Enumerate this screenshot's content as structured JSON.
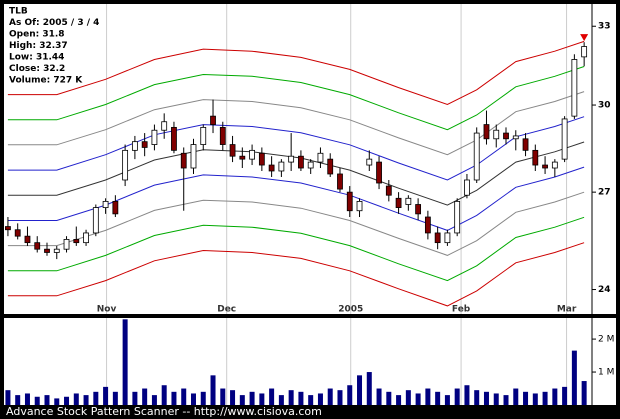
{
  "chart_data": {
    "type": "candlestick",
    "info": [
      "TLB",
      "As Of: 2005 / 3 / 4",
      "Open: 31.8",
      "High: 32.37",
      "Low: 31.44",
      "Close: 32.2",
      "Volume: 727 K"
    ],
    "footer": "Advance Stock Pattern Scanner -- http://www.cisiova.com",
    "ohlc": [
      [
        25.9,
        26.2,
        25.6,
        25.8
      ],
      [
        25.8,
        26.0,
        25.5,
        25.6
      ],
      [
        25.6,
        25.9,
        25.3,
        25.4
      ],
      [
        25.4,
        25.6,
        25.1,
        25.2
      ],
      [
        25.2,
        25.4,
        25.0,
        25.1
      ],
      [
        25.1,
        25.3,
        24.9,
        25.2
      ],
      [
        25.2,
        25.6,
        25.1,
        25.5
      ],
      [
        25.5,
        25.9,
        25.3,
        25.4
      ],
      [
        25.4,
        25.8,
        25.3,
        25.7
      ],
      [
        25.7,
        26.6,
        25.6,
        26.5
      ],
      [
        26.5,
        26.8,
        26.3,
        26.7
      ],
      [
        26.7,
        26.9,
        26.2,
        26.3
      ],
      [
        27.4,
        28.6,
        27.2,
        28.4
      ],
      [
        28.4,
        28.9,
        28.1,
        28.7
      ],
      [
        28.7,
        29.0,
        28.2,
        28.5
      ],
      [
        28.6,
        29.3,
        28.4,
        29.1
      ],
      [
        29.1,
        29.7,
        28.8,
        29.4
      ],
      [
        29.2,
        29.4,
        28.3,
        28.4
      ],
      [
        28.3,
        28.5,
        26.4,
        27.8
      ],
      [
        27.8,
        28.8,
        27.6,
        28.6
      ],
      [
        28.6,
        29.3,
        28.4,
        29.2
      ],
      [
        29.6,
        30.2,
        29.0,
        29.3
      ],
      [
        29.2,
        29.4,
        28.4,
        28.6
      ],
      [
        28.6,
        28.9,
        28.0,
        28.2
      ],
      [
        28.2,
        28.5,
        27.8,
        28.1
      ],
      [
        28.1,
        28.6,
        27.9,
        28.4
      ],
      [
        28.3,
        28.5,
        27.7,
        27.9
      ],
      [
        27.9,
        28.2,
        27.5,
        27.7
      ],
      [
        27.7,
        28.1,
        27.5,
        28.0
      ],
      [
        28.0,
        29.0,
        27.7,
        28.2
      ],
      [
        28.2,
        28.4,
        27.7,
        27.8
      ],
      [
        27.8,
        28.1,
        27.6,
        28.0
      ],
      [
        28.0,
        28.5,
        27.8,
        28.3
      ],
      [
        28.1,
        28.3,
        27.5,
        27.6
      ],
      [
        27.6,
        27.8,
        27.0,
        27.1
      ],
      [
        27.0,
        27.2,
        26.2,
        26.4
      ],
      [
        26.4,
        26.8,
        26.2,
        26.7
      ],
      [
        27.9,
        28.4,
        27.7,
        28.1
      ],
      [
        28.0,
        28.2,
        27.1,
        27.3
      ],
      [
        27.2,
        27.4,
        26.7,
        26.9
      ],
      [
        26.8,
        27.0,
        26.3,
        26.5
      ],
      [
        26.6,
        26.9,
        26.4,
        26.8
      ],
      [
        26.6,
        26.8,
        26.1,
        26.3
      ],
      [
        26.2,
        26.4,
        25.5,
        25.7
      ],
      [
        25.7,
        25.9,
        25.2,
        25.4
      ],
      [
        25.4,
        25.8,
        25.3,
        25.7
      ],
      [
        25.7,
        26.8,
        25.6,
        26.7
      ],
      [
        26.9,
        27.6,
        26.8,
        27.4
      ],
      [
        27.4,
        29.2,
        27.3,
        29.0
      ],
      [
        29.3,
        29.8,
        28.6,
        28.8
      ],
      [
        28.8,
        29.3,
        28.5,
        29.1
      ],
      [
        29.0,
        29.2,
        28.6,
        28.8
      ],
      [
        28.8,
        29.1,
        28.4,
        28.9
      ],
      [
        28.8,
        29.0,
        28.2,
        28.4
      ],
      [
        28.4,
        28.6,
        27.7,
        27.9
      ],
      [
        27.9,
        28.2,
        27.6,
        27.8
      ],
      [
        27.8,
        28.1,
        27.5,
        28.0
      ],
      [
        28.1,
        29.6,
        28.0,
        29.5
      ],
      [
        29.6,
        31.9,
        29.5,
        31.7
      ],
      [
        31.8,
        32.37,
        31.44,
        32.2
      ]
    ],
    "up_color": "#ffffff",
    "down_color": "#800000",
    "xlim": [
      -0.3,
      59.6
    ],
    "xticks": [
      {
        "value": 10.1,
        "label": "Nov"
      },
      {
        "value": 22.4,
        "label": "Dec"
      },
      {
        "value": 35.1,
        "label": "2005"
      },
      {
        "value": 46.4,
        "label": "Feb"
      },
      {
        "value": 57.2,
        "label": "Mar"
      }
    ],
    "ylim": [
      23.3,
      33.9
    ],
    "yticks": [
      24,
      27,
      30,
      33
    ],
    "log_scale": true,
    "grid": true,
    "bands": {
      "x": [
        0,
        5,
        10,
        15,
        20,
        25,
        30,
        35,
        40,
        45,
        48,
        52,
        56,
        59
      ],
      "series": [
        {
          "color": "#cc0000",
          "values": [
            30.38,
            30.38,
            30.95,
            31.7,
            32.1,
            32.02,
            31.78,
            31.32,
            30.64,
            30.02,
            30.56,
            31.62,
            32.02,
            32.4
          ]
        },
        {
          "color": "#00aa00",
          "values": [
            29.47,
            29.47,
            30.02,
            30.75,
            31.13,
            31.06,
            30.83,
            30.38,
            29.72,
            29.12,
            29.64,
            30.67,
            31.06,
            31.43
          ]
        },
        {
          "color": "#888888",
          "values": [
            28.59,
            28.59,
            29.12,
            29.83,
            30.2,
            30.13,
            29.9,
            29.47,
            28.83,
            28.25,
            28.76,
            29.76,
            30.13,
            30.49
          ]
        },
        {
          "color": "#2222cc",
          "values": [
            27.73,
            27.73,
            28.25,
            28.94,
            29.3,
            29.23,
            29.01,
            28.59,
            27.97,
            27.4,
            27.9,
            28.87,
            29.23,
            29.58
          ]
        },
        {
          "color": "#333333",
          "values": [
            26.9,
            26.9,
            27.4,
            28.07,
            28.42,
            28.35,
            28.14,
            27.73,
            27.13,
            26.58,
            27.06,
            28.0,
            28.35,
            28.69
          ]
        },
        {
          "color": "#2222cc",
          "values": [
            26.09,
            26.09,
            26.58,
            27.23,
            27.57,
            27.5,
            27.3,
            26.9,
            26.32,
            25.78,
            26.25,
            27.16,
            27.5,
            27.83
          ]
        },
        {
          "color": "#888888",
          "values": [
            25.31,
            25.31,
            25.78,
            26.41,
            26.74,
            26.68,
            26.48,
            26.09,
            25.53,
            25.01,
            25.46,
            26.35,
            26.68,
            27.0
          ]
        },
        {
          "color": "#00aa00",
          "values": [
            24.55,
            24.55,
            25.01,
            25.62,
            25.94,
            25.88,
            25.69,
            25.31,
            24.76,
            24.26,
            24.7,
            25.56,
            25.88,
            26.19
          ]
        },
        {
          "color": "#cc0000",
          "values": [
            23.82,
            23.82,
            24.26,
            24.85,
            25.16,
            25.1,
            24.92,
            24.55,
            24.02,
            23.53,
            23.96,
            24.79,
            25.1,
            25.4
          ]
        }
      ]
    },
    "volume": {
      "color": "#000080",
      "values": [
        0.45,
        0.3,
        0.35,
        0.25,
        0.3,
        0.2,
        0.25,
        0.35,
        0.3,
        0.4,
        0.55,
        0.4,
        2.6,
        0.4,
        0.5,
        0.3,
        0.6,
        0.4,
        0.5,
        0.35,
        0.4,
        0.9,
        0.5,
        0.45,
        0.3,
        0.4,
        0.35,
        0.5,
        0.3,
        0.45,
        0.4,
        0.3,
        0.35,
        0.5,
        0.45,
        0.6,
        0.9,
        1.0,
        0.5,
        0.4,
        0.3,
        0.45,
        0.35,
        0.5,
        0.4,
        0.3,
        0.5,
        0.6,
        0.45,
        0.4,
        0.35,
        0.3,
        0.5,
        0.4,
        0.35,
        0.4,
        0.5,
        0.55,
        1.65,
        0.727
      ],
      "ylim": [
        0,
        2.64
      ],
      "yticks": [
        {
          "value": 1,
          "label": "1 M"
        },
        {
          "value": 2,
          "label": "2 M"
        }
      ]
    }
  }
}
